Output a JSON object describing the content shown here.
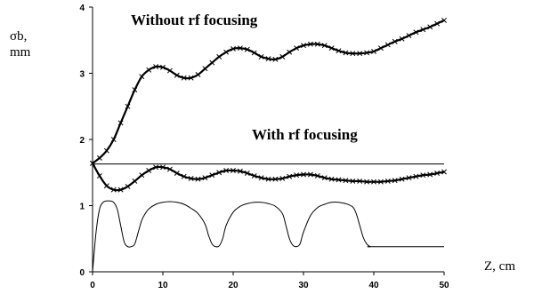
{
  "chart_data": {
    "type": "line",
    "ylabel_line1": "σb,",
    "ylabel_line2": "mm",
    "xlabel": "Z, cm",
    "xlim": [
      0,
      50
    ],
    "ylim": [
      0,
      4
    ],
    "x_ticks": [
      0,
      10,
      20,
      30,
      40,
      50
    ],
    "y_ticks": [
      0,
      1,
      2,
      3,
      4
    ],
    "annotations": {
      "without": "Without rf focusing",
      "with": "With rf focusing"
    },
    "colors": {
      "ink": "#000000",
      "background": "#ffffff"
    },
    "series": [
      {
        "label_ref": "without",
        "marker": "x",
        "x": [
          0,
          1,
          2,
          3,
          4,
          5,
          6,
          7,
          8,
          9,
          10,
          11,
          12,
          13,
          14,
          15,
          16,
          17,
          18,
          19,
          20,
          21,
          22,
          23,
          24,
          25,
          26,
          27,
          28,
          29,
          30,
          31,
          32,
          33,
          34,
          35,
          36,
          37,
          38,
          39,
          40,
          41,
          42,
          43,
          44,
          45,
          46,
          47,
          48,
          49,
          50
        ],
        "y": [
          1.64,
          1.72,
          1.83,
          2.0,
          2.25,
          2.5,
          2.75,
          2.95,
          3.05,
          3.1,
          3.09,
          3.04,
          2.97,
          2.93,
          2.93,
          2.98,
          3.07,
          3.16,
          3.25,
          3.32,
          3.37,
          3.38,
          3.36,
          3.31,
          3.25,
          3.22,
          3.21,
          3.25,
          3.32,
          3.38,
          3.42,
          3.44,
          3.44,
          3.42,
          3.38,
          3.34,
          3.31,
          3.3,
          3.3,
          3.31,
          3.33,
          3.38,
          3.43,
          3.48,
          3.52,
          3.57,
          3.62,
          3.66,
          3.7,
          3.75,
          3.8
        ]
      },
      {
        "label_ref": "with",
        "marker": "x",
        "x": [
          0,
          1,
          2,
          3,
          4,
          5,
          6,
          7,
          8,
          9,
          10,
          11,
          12,
          13,
          14,
          15,
          16,
          17,
          18,
          19,
          20,
          21,
          22,
          23,
          24,
          25,
          26,
          27,
          28,
          29,
          30,
          31,
          32,
          33,
          34,
          35,
          36,
          37,
          38,
          39,
          40,
          41,
          42,
          43,
          44,
          45,
          46,
          47,
          48,
          49,
          50
        ],
        "y": [
          1.64,
          1.45,
          1.3,
          1.24,
          1.24,
          1.29,
          1.37,
          1.46,
          1.53,
          1.58,
          1.58,
          1.55,
          1.49,
          1.44,
          1.41,
          1.4,
          1.42,
          1.46,
          1.5,
          1.53,
          1.53,
          1.52,
          1.49,
          1.45,
          1.42,
          1.4,
          1.4,
          1.41,
          1.44,
          1.46,
          1.47,
          1.47,
          1.45,
          1.42,
          1.4,
          1.39,
          1.38,
          1.37,
          1.37,
          1.36,
          1.36,
          1.36,
          1.37,
          1.38,
          1.4,
          1.42,
          1.44,
          1.46,
          1.47,
          1.49,
          1.51
        ]
      },
      {
        "label_ref": "reference",
        "marker": "none",
        "x": [
          0,
          50
        ],
        "y": [
          1.63,
          1.63
        ]
      },
      {
        "label_ref": "rf_profile",
        "marker": "none",
        "x": [
          0,
          0.5,
          1,
          1.5,
          2,
          2.5,
          3,
          3.5,
          4,
          4.5,
          5,
          5.5,
          6,
          6.5,
          7,
          7.5,
          8,
          9,
          10,
          11,
          12,
          13,
          14,
          15,
          16,
          16.5,
          17,
          17.5,
          18,
          18.5,
          19,
          20,
          21,
          22,
          23,
          24,
          25,
          26,
          27,
          27.5,
          28,
          28.5,
          29,
          29.5,
          30,
          31,
          32,
          33,
          34,
          35,
          36,
          37,
          37.5,
          38,
          38.5,
          39,
          39.5,
          40,
          50
        ],
        "y": [
          0,
          0.6,
          0.95,
          1.05,
          1.07,
          1.07,
          1.05,
          0.95,
          0.7,
          0.45,
          0.38,
          0.38,
          0.42,
          0.6,
          0.78,
          0.88,
          0.95,
          1.02,
          1.05,
          1.06,
          1.05,
          1.02,
          0.96,
          0.88,
          0.72,
          0.55,
          0.42,
          0.38,
          0.39,
          0.5,
          0.7,
          0.9,
          0.99,
          1.03,
          1.05,
          1.05,
          1.03,
          0.99,
          0.88,
          0.7,
          0.5,
          0.4,
          0.38,
          0.42,
          0.6,
          0.85,
          0.97,
          1.02,
          1.05,
          1.05,
          1.03,
          0.98,
          0.88,
          0.7,
          0.52,
          0.42,
          0.38,
          0.38,
          0.38
        ]
      }
    ]
  }
}
